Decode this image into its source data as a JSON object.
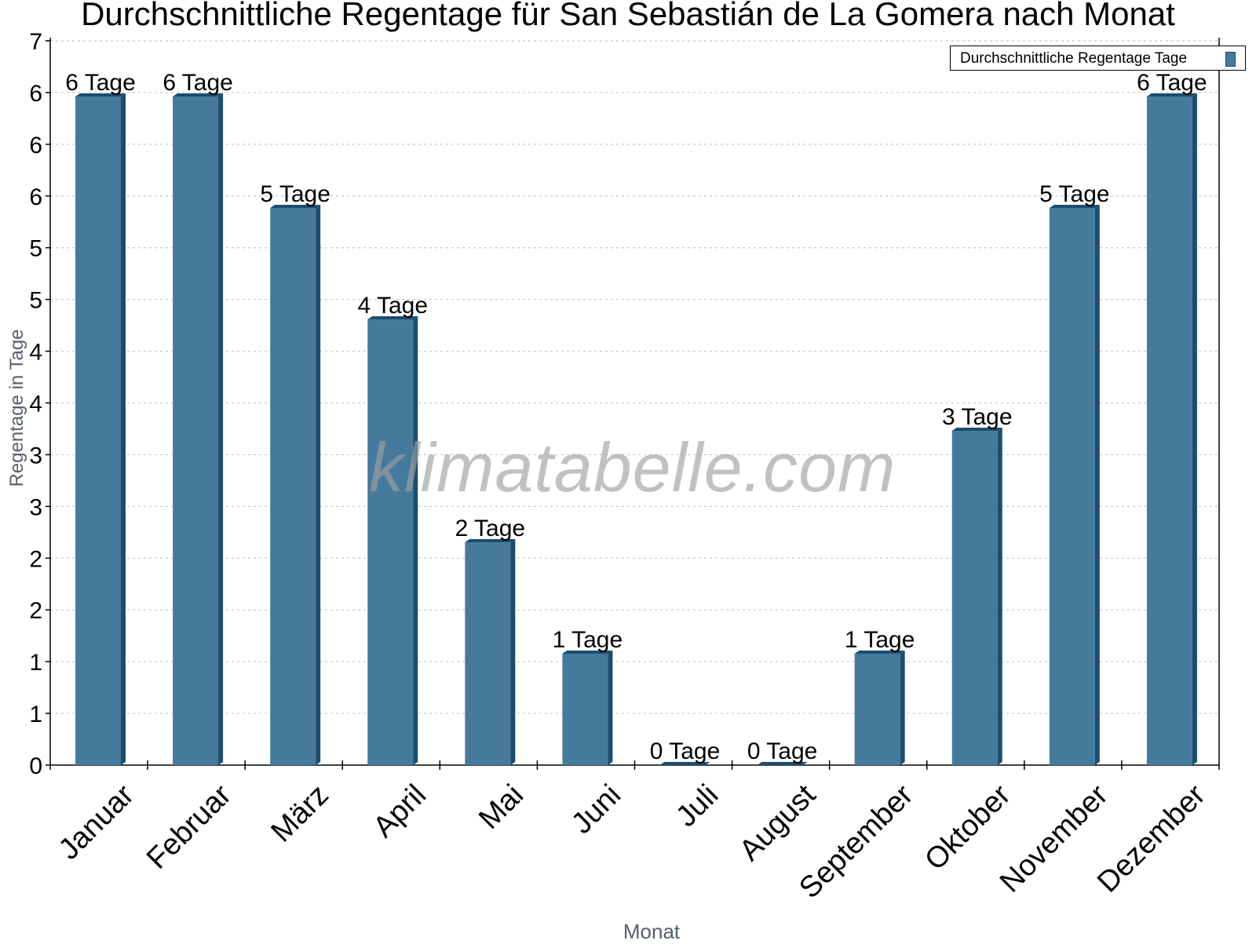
{
  "chart_data": {
    "type": "bar",
    "title": "Durchschnittliche Regentage für San Sebastián de La Gomera nach Monat",
    "xlabel": "Monat",
    "ylabel": "Regentage in Tage",
    "categories": [
      "Januar",
      "Februar",
      "März",
      "April",
      "Mai",
      "Juni",
      "Juli",
      "August",
      "September",
      "Oktober",
      "November",
      "Dezember"
    ],
    "series": [
      {
        "name": "Durchschnittliche Regentage Tage",
        "values": [
          6,
          6,
          5,
          4,
          2,
          1,
          0,
          0,
          1,
          3,
          5,
          6
        ],
        "data_labels": [
          "6 Tage",
          "6 Tage",
          "5 Tage",
          "4 Tage",
          "2 Tage",
          "1 Tage",
          "0 Tage",
          "0 Tage",
          "1 Tage",
          "3 Tage",
          "5 Tage",
          "6 Tage"
        ],
        "color": "#467a9c",
        "edge_color": "#1b4d6e"
      }
    ],
    "ylim": [
      0,
      7
    ],
    "ytick_labels": [
      "0",
      "1",
      "1",
      "2",
      "2",
      "3",
      "3",
      "4",
      "4",
      "5",
      "5",
      "6",
      "6",
      "6",
      "7"
    ],
    "grid": true,
    "legend_position": "top-right",
    "watermark": "klimatabelle.com"
  }
}
